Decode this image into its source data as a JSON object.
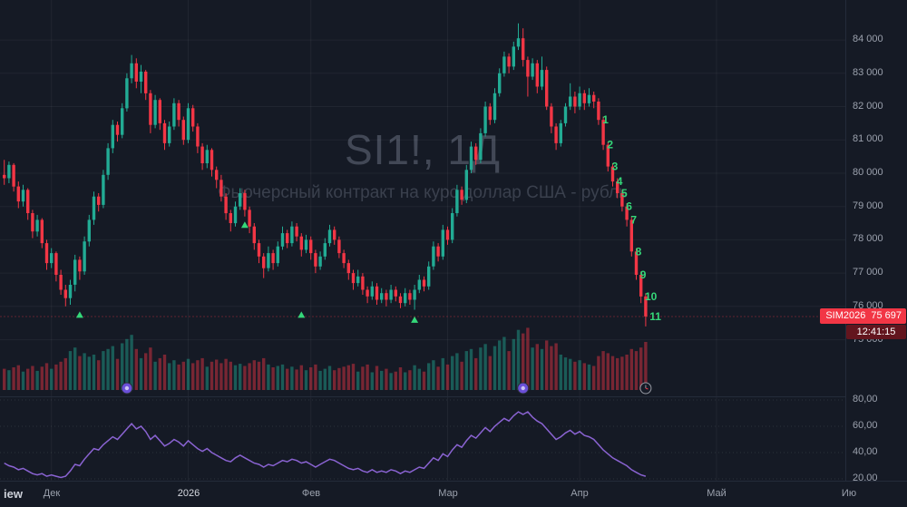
{
  "watermark": {
    "title": "SI1!, 1Д",
    "subtitle": "Фьючерсный контракт на курс доллар США - рубль"
  },
  "badge": {
    "symbol": "SIM2026",
    "price": "75 697",
    "countdown": "12:41:15"
  },
  "logo_text": "iew",
  "colors": {
    "background": "#151a25",
    "up": "#22ab94",
    "down": "#f23645",
    "volume_up": "rgba(34,171,148,0.45)",
    "volume_down": "rgba(242,54,69,0.45)",
    "indicator_line": "#8a63d2",
    "count_label": "#35d779",
    "axis_text": "#9ba1ad",
    "grid": "rgba(255,255,255,0.05)",
    "badge_bg": "#f23645",
    "countdown_bg": "#63151e"
  },
  "chart_data": [
    {
      "type": "candlestick",
      "title": "SI1!, 1Д",
      "subtitle": "Фьючерсный контракт на курс доллар США - рубль",
      "last_price": 75697,
      "price_axis_ticks": [
        84000,
        83000,
        82000,
        81000,
        80000,
        79000,
        78000,
        77000,
        76000,
        75000
      ],
      "price_scale_top": 85200,
      "price_scale_bottom": 73300,
      "time_axis_ticks": [
        {
          "label": "Дек",
          "index": 10,
          "major": false
        },
        {
          "label": "2026",
          "index": 39,
          "major": true
        },
        {
          "label": "Фев",
          "index": 65,
          "major": false
        },
        {
          "label": "Мар",
          "index": 94,
          "major": false
        },
        {
          "label": "Апр",
          "index": 122,
          "major": false
        },
        {
          "label": "Май",
          "index": 151,
          "major": false
        },
        {
          "label": "Ию",
          "index": 179,
          "major": false
        }
      ],
      "candles_format": [
        "open",
        "high",
        "low",
        "close",
        "volume_rel"
      ],
      "candles": [
        [
          79950,
          80400,
          79650,
          79850,
          30
        ],
        [
          79850,
          80350,
          79700,
          80250,
          28
        ],
        [
          80250,
          80300,
          79450,
          79600,
          32
        ],
        [
          79600,
          79750,
          78950,
          79150,
          35
        ],
        [
          79150,
          79650,
          79000,
          79500,
          26
        ],
        [
          79500,
          79550,
          78600,
          78800,
          30
        ],
        [
          78800,
          78900,
          78050,
          78250,
          34
        ],
        [
          78250,
          78750,
          78100,
          78600,
          27
        ],
        [
          78600,
          78650,
          77750,
          77900,
          33
        ],
        [
          77900,
          78000,
          77100,
          77300,
          38
        ],
        [
          77300,
          77750,
          77150,
          77600,
          30
        ],
        [
          77600,
          77650,
          76750,
          76950,
          36
        ],
        [
          76950,
          77100,
          76350,
          76500,
          40
        ],
        [
          76500,
          76650,
          76000,
          76250,
          45
        ],
        [
          76250,
          76800,
          76050,
          76650,
          55
        ],
        [
          76650,
          77550,
          76450,
          77400,
          60
        ],
        [
          77400,
          77500,
          76800,
          77050,
          48
        ],
        [
          77050,
          78100,
          76950,
          77950,
          52
        ],
        [
          77950,
          78750,
          77800,
          78600,
          47
        ],
        [
          78600,
          79450,
          78450,
          79300,
          50
        ],
        [
          79300,
          79400,
          78850,
          79050,
          42
        ],
        [
          79050,
          80100,
          78950,
          79950,
          55
        ],
        [
          79950,
          80900,
          79800,
          80750,
          58
        ],
        [
          80750,
          81600,
          80600,
          81450,
          62
        ],
        [
          81450,
          81550,
          80950,
          81150,
          44
        ],
        [
          81150,
          82100,
          81050,
          81950,
          66
        ],
        [
          81950,
          83000,
          81850,
          82850,
          72
        ],
        [
          82850,
          83550,
          82700,
          83300,
          78
        ],
        [
          83300,
          83450,
          82550,
          82750,
          58
        ],
        [
          82750,
          83250,
          82400,
          83050,
          45
        ],
        [
          83050,
          83100,
          82200,
          82400,
          52
        ],
        [
          82400,
          82500,
          81200,
          81450,
          60
        ],
        [
          81450,
          82350,
          81350,
          82200,
          40
        ],
        [
          82200,
          82250,
          81300,
          81500,
          45
        ],
        [
          81500,
          81600,
          80700,
          80900,
          50
        ],
        [
          80900,
          81550,
          80800,
          81400,
          38
        ],
        [
          81400,
          82250,
          81300,
          82100,
          42
        ],
        [
          82100,
          82200,
          81400,
          81600,
          36
        ],
        [
          81600,
          81700,
          80850,
          81000,
          40
        ],
        [
          81000,
          82100,
          80900,
          81950,
          44
        ],
        [
          81950,
          82050,
          81250,
          81400,
          38
        ],
        [
          81400,
          81500,
          80600,
          80800,
          42
        ],
        [
          80800,
          80900,
          80100,
          80300,
          45
        ],
        [
          80300,
          80850,
          80150,
          80700,
          33
        ],
        [
          80700,
          80750,
          79900,
          80100,
          40
        ],
        [
          80100,
          80200,
          79550,
          79800,
          43
        ],
        [
          79800,
          79950,
          79150,
          79300,
          38
        ],
        [
          79300,
          79400,
          78600,
          78800,
          44
        ],
        [
          78800,
          78900,
          78250,
          78500,
          40
        ],
        [
          78500,
          79150,
          78400,
          79000,
          35
        ],
        [
          79000,
          79550,
          78900,
          79400,
          37
        ],
        [
          79400,
          79500,
          78700,
          78900,
          34
        ],
        [
          78900,
          79000,
          78200,
          78400,
          38
        ],
        [
          78400,
          78500,
          77700,
          77900,
          42
        ],
        [
          77900,
          78000,
          77300,
          77500,
          40
        ],
        [
          77500,
          77600,
          76850,
          77150,
          45
        ],
        [
          77150,
          77800,
          77050,
          77600,
          36
        ],
        [
          77600,
          77700,
          77100,
          77300,
          32
        ],
        [
          77300,
          77950,
          77200,
          77800,
          34
        ],
        [
          77800,
          78400,
          77700,
          78200,
          36
        ],
        [
          78200,
          78300,
          77750,
          77900,
          30
        ],
        [
          77900,
          78550,
          77800,
          78400,
          33
        ],
        [
          78400,
          78500,
          77950,
          78100,
          29
        ],
        [
          78100,
          78200,
          77500,
          77700,
          35
        ],
        [
          77700,
          78150,
          77600,
          78000,
          28
        ],
        [
          78000,
          78100,
          77400,
          77600,
          32
        ],
        [
          77600,
          77700,
          77000,
          77200,
          36
        ],
        [
          77200,
          77650,
          77100,
          77500,
          27
        ],
        [
          77500,
          78050,
          77400,
          77900,
          30
        ],
        [
          77900,
          78450,
          77800,
          78300,
          34
        ],
        [
          78300,
          78400,
          77850,
          78000,
          28
        ],
        [
          78000,
          78100,
          77450,
          77600,
          31
        ],
        [
          77600,
          77700,
          77150,
          77300,
          33
        ],
        [
          77300,
          77400,
          76800,
          77000,
          35
        ],
        [
          77000,
          77100,
          76500,
          76700,
          37
        ],
        [
          76700,
          77100,
          76600,
          76900,
          26
        ],
        [
          76900,
          77000,
          76350,
          76500,
          33
        ],
        [
          76500,
          76600,
          76100,
          76300,
          36
        ],
        [
          76300,
          76750,
          76200,
          76600,
          25
        ],
        [
          76600,
          76700,
          76050,
          76200,
          34
        ],
        [
          76200,
          76550,
          76100,
          76400,
          27
        ],
        [
          76400,
          76500,
          76000,
          76200,
          30
        ],
        [
          76200,
          76650,
          76100,
          76500,
          24
        ],
        [
          76500,
          76600,
          76150,
          76300,
          26
        ],
        [
          76300,
          76400,
          75950,
          76100,
          32
        ],
        [
          76100,
          76550,
          76000,
          76400,
          25
        ],
        [
          76400,
          76500,
          76050,
          76200,
          28
        ],
        [
          76200,
          76650,
          75900,
          76500,
          35
        ],
        [
          76500,
          76950,
          76400,
          76800,
          30
        ],
        [
          76800,
          76900,
          76450,
          76600,
          26
        ],
        [
          76600,
          77350,
          76500,
          77200,
          38
        ],
        [
          77200,
          77950,
          77100,
          77800,
          42
        ],
        [
          77800,
          77900,
          77350,
          77500,
          33
        ],
        [
          77500,
          78450,
          77400,
          78300,
          45
        ],
        [
          78300,
          78400,
          77850,
          78000,
          36
        ],
        [
          78000,
          78950,
          77900,
          78800,
          48
        ],
        [
          78800,
          79650,
          78700,
          79500,
          52
        ],
        [
          79500,
          79600,
          79050,
          79200,
          40
        ],
        [
          79200,
          80250,
          79100,
          80100,
          55
        ],
        [
          80100,
          80950,
          80000,
          80800,
          58
        ],
        [
          80800,
          80900,
          80250,
          80400,
          45
        ],
        [
          80400,
          81350,
          80300,
          81200,
          60
        ],
        [
          81200,
          82150,
          81100,
          82000,
          65
        ],
        [
          82000,
          82100,
          81450,
          81600,
          48
        ],
        [
          81600,
          82550,
          81500,
          82400,
          62
        ],
        [
          82400,
          83150,
          82300,
          83000,
          70
        ],
        [
          83000,
          83650,
          82900,
          83500,
          75
        ],
        [
          83500,
          83600,
          83000,
          83200,
          55
        ],
        [
          83200,
          83950,
          83100,
          83800,
          72
        ],
        [
          83800,
          84500,
          83700,
          84050,
          85
        ],
        [
          84050,
          84350,
          83200,
          83400,
          80
        ],
        [
          83400,
          83500,
          82300,
          82900,
          88
        ],
        [
          82900,
          83450,
          82800,
          83300,
          60
        ],
        [
          83300,
          83400,
          82400,
          82600,
          65
        ],
        [
          82600,
          83500,
          82500,
          83100,
          58
        ],
        [
          83100,
          83200,
          81900,
          82000,
          70
        ],
        [
          82000,
          82100,
          81200,
          81400,
          62
        ],
        [
          81400,
          81500,
          80700,
          80900,
          66
        ],
        [
          80900,
          81600,
          80800,
          81500,
          50
        ],
        [
          81500,
          82100,
          81400,
          82000,
          46
        ],
        [
          82000,
          82700,
          81900,
          82300,
          44
        ],
        [
          82300,
          82450,
          81800,
          82000,
          40
        ],
        [
          82000,
          82600,
          81900,
          82400,
          42
        ],
        [
          82400,
          82500,
          81900,
          82100,
          38
        ],
        [
          82100,
          82550,
          82000,
          82350,
          36
        ],
        [
          82350,
          82450,
          81950,
          82150,
          34
        ],
        [
          82150,
          82250,
          81450,
          81600,
          48
        ],
        [
          81600,
          81700,
          80700,
          80850,
          55
        ],
        [
          80850,
          80950,
          80050,
          80200,
          52
        ],
        [
          80200,
          80300,
          79600,
          79750,
          48
        ],
        [
          79750,
          79850,
          79250,
          79400,
          45
        ],
        [
          79400,
          79500,
          78850,
          79000,
          47
        ],
        [
          79000,
          79100,
          78400,
          78600,
          50
        ],
        [
          78600,
          78700,
          77500,
          77650,
          58
        ],
        [
          77650,
          77750,
          76800,
          76950,
          55
        ],
        [
          76950,
          77050,
          76100,
          76300,
          60
        ],
        [
          76300,
          76400,
          75400,
          75697,
          68
        ]
      ],
      "count_labels": [
        {
          "index": 126,
          "label": "1"
        },
        {
          "index": 127,
          "label": "2"
        },
        {
          "index": 128,
          "label": "3"
        },
        {
          "index": 129,
          "label": "4"
        },
        {
          "index": 130,
          "label": "5"
        },
        {
          "index": 131,
          "label": "6"
        },
        {
          "index": 132,
          "label": "7"
        },
        {
          "index": 133,
          "label": "8"
        },
        {
          "index": 134,
          "label": "9"
        },
        {
          "index": 135,
          "label": "10"
        },
        {
          "index": 136,
          "label": "11"
        }
      ],
      "markers": [
        {
          "index": 16,
          "price": 75850,
          "shape": "triangle-up"
        },
        {
          "index": 51,
          "price": 78550,
          "shape": "triangle-up"
        },
        {
          "index": 63,
          "price": 75850,
          "shape": "triangle-up"
        },
        {
          "index": 87,
          "price": 75700,
          "shape": "triangle-up"
        }
      ],
      "events": [
        {
          "index": 26,
          "kind": "event"
        },
        {
          "index": 110,
          "kind": "event"
        },
        {
          "index": 136,
          "kind": "timer"
        }
      ]
    },
    {
      "type": "line",
      "name": "oscillator",
      "axis_ticks": [
        80,
        60,
        40,
        20
      ],
      "tick_labels": [
        "80,00",
        "60,00",
        "40,00",
        "20,00"
      ],
      "values": [
        32,
        30,
        29,
        27,
        28,
        26,
        24,
        23,
        24,
        22,
        23,
        22,
        21,
        22,
        26,
        31,
        30,
        35,
        39,
        43,
        42,
        46,
        49,
        52,
        50,
        54,
        58,
        62,
        58,
        60,
        56,
        50,
        53,
        49,
        45,
        47,
        50,
        48,
        45,
        49,
        46,
        43,
        41,
        43,
        40,
        38,
        36,
        34,
        33,
        36,
        38,
        36,
        34,
        32,
        31,
        29,
        31,
        30,
        32,
        34,
        33,
        35,
        34,
        32,
        33,
        31,
        29,
        31,
        33,
        35,
        34,
        32,
        30,
        28,
        27,
        28,
        26,
        25,
        27,
        25,
        26,
        25,
        27,
        26,
        24,
        26,
        25,
        27,
        29,
        28,
        32,
        36,
        34,
        39,
        37,
        42,
        46,
        44,
        49,
        53,
        51,
        55,
        59,
        56,
        60,
        63,
        66,
        64,
        68,
        71,
        69,
        71,
        67,
        64,
        62,
        58,
        54,
        50,
        52,
        55,
        57,
        54,
        56,
        53,
        52,
        50,
        46,
        42,
        39,
        36,
        34,
        32,
        30,
        27,
        25,
        23,
        22
      ]
    }
  ]
}
